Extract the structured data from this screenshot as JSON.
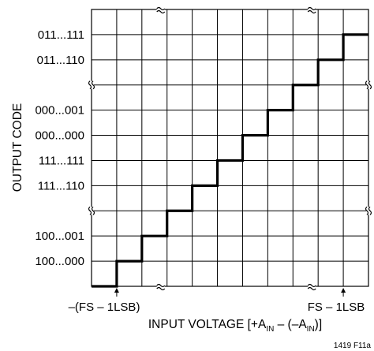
{
  "chart_data": {
    "type": "line",
    "title": "",
    "xlabel": "INPUT VOLTAGE [+A",
    "xlabel_parts": [
      "INPUT VOLTAGE [+A",
      "IN",
      " – (–A",
      "IN",
      ")]"
    ],
    "ylabel": "OUTPUT CODE",
    "y_tick_labels": [
      "100...000",
      "100...001",
      "111...110",
      "111...111",
      "000...000",
      "000...001",
      "011...110",
      "011...111"
    ],
    "x_annotations": [
      "–(FS – 1LSB)",
      "FS – 1LSB"
    ],
    "axis_breaks": {
      "x": true,
      "y": true
    },
    "grid": true,
    "steps": 10,
    "x": [
      0,
      1,
      2,
      3,
      4,
      5,
      6,
      7,
      8,
      9,
      10,
      11
    ],
    "y": [
      0,
      1,
      2,
      3,
      4,
      5,
      6,
      7,
      8,
      9,
      10,
      11
    ]
  },
  "figure_id": "1419 F11a"
}
